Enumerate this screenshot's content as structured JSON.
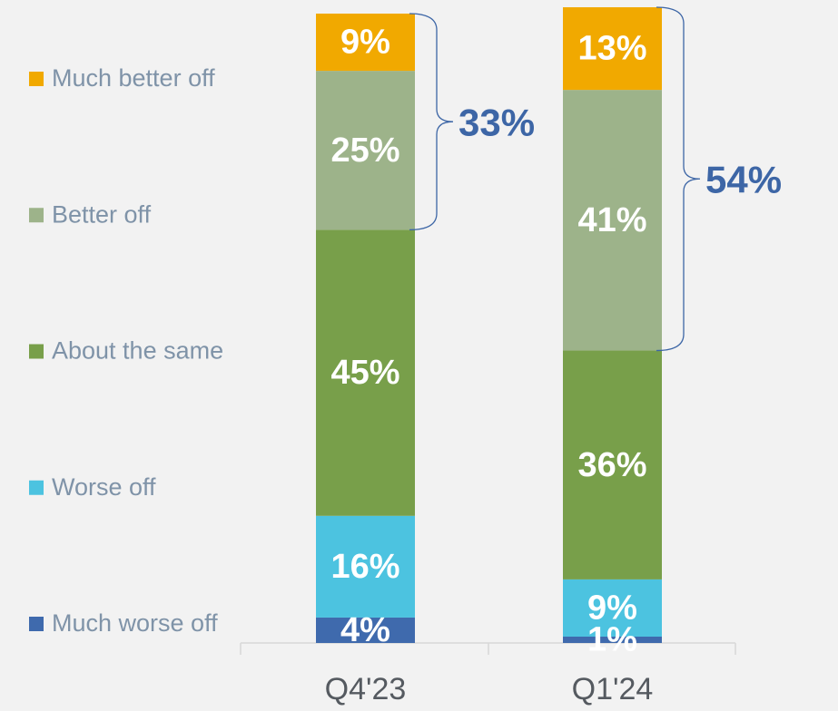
{
  "chart_data": {
    "type": "stacked_bar",
    "categories": [
      "Q4'23",
      "Q1'24"
    ],
    "ylim": [
      0,
      100
    ],
    "series": [
      {
        "name": "Much worse off",
        "color": "#3f6aad",
        "values": [
          4,
          1
        ],
        "value_labels": [
          "4%",
          "1%"
        ]
      },
      {
        "name": "Worse off",
        "color": "#4cc3e0",
        "values": [
          16,
          9
        ],
        "value_labels": [
          "16%",
          "9%"
        ]
      },
      {
        "name": "About the same",
        "color": "#789f4a",
        "values": [
          45,
          36
        ],
        "value_labels": [
          "45%",
          "36%"
        ]
      },
      {
        "name": "Better off",
        "color": "#9db38a",
        "values": [
          25,
          41
        ],
        "value_labels": [
          "25%",
          "41%"
        ]
      },
      {
        "name": "Much better off",
        "color": "#f1a900",
        "values": [
          9,
          13
        ],
        "value_labels": [
          "9%",
          "13%"
        ]
      }
    ],
    "annotations": [
      {
        "text": "33%"
      },
      {
        "text": "54%"
      }
    ]
  }
}
